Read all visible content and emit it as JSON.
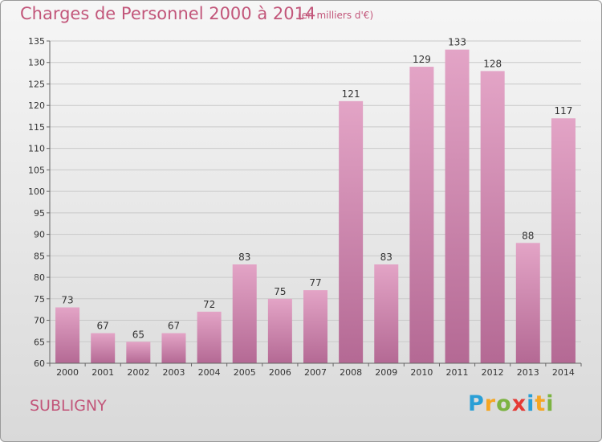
{
  "chart_data": {
    "type": "bar",
    "title": "Charges de Personnel 2000 à 2014",
    "subtitle": "(en milliers d'€)",
    "categories": [
      "2000",
      "2001",
      "2002",
      "2003",
      "2004",
      "2005",
      "2006",
      "2007",
      "2008",
      "2009",
      "2010",
      "2011",
      "2012",
      "2013",
      "2014"
    ],
    "values": [
      73,
      67,
      65,
      67,
      72,
      83,
      75,
      77,
      121,
      83,
      129,
      133,
      128,
      88,
      117
    ],
    "ylim": [
      60,
      135
    ],
    "yticks": [
      60,
      65,
      70,
      75,
      80,
      85,
      90,
      95,
      100,
      105,
      110,
      115,
      120,
      125,
      130,
      135
    ],
    "grid": true,
    "bar_color": "#d98fb3"
  },
  "commune": "SUBLIGNY",
  "logo": {
    "letters": [
      "P",
      "r",
      "o",
      "x",
      "i",
      "t",
      "i"
    ],
    "colors": [
      "#2a9fd6",
      "#f5a623",
      "#7cb342",
      "#e53935",
      "#2a9fd6",
      "#f5a623",
      "#7cb342"
    ]
  }
}
